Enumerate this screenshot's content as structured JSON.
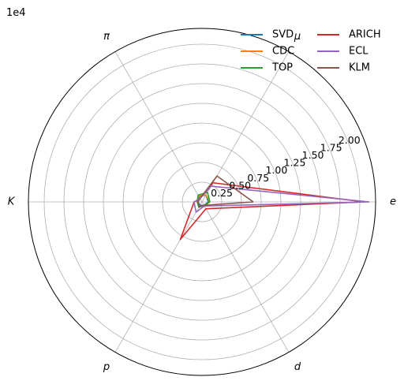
{
  "chart_data": {
    "type": "radar",
    "scale_note": "1e4",
    "categories": [
      "e",
      "μ",
      "π",
      "K",
      "p",
      "d"
    ],
    "radial_ticks": [
      0.25,
      0.5,
      0.75,
      1.0,
      1.25,
      1.5,
      1.75,
      2.0
    ],
    "radial_tick_labels": [
      "0.25",
      "0.50",
      "0.75",
      "1.00",
      "1.25",
      "1.50",
      "1.75",
      "2.00"
    ],
    "rlim": [
      0,
      2.2
    ],
    "grid": true,
    "legend_position": "top-right",
    "series": [
      {
        "name": "SVD",
        "color": "#1f77b4",
        "values": [
          0.08,
          0.1,
          0.08,
          0.05,
          0.05,
          0.05
        ]
      },
      {
        "name": "CDC",
        "color": "#ff7f0e",
        "values": [
          0.1,
          0.1,
          0.09,
          0.06,
          0.07,
          0.06
        ]
      },
      {
        "name": "TOP",
        "color": "#2ca02c",
        "values": [
          0.1,
          0.14,
          0.1,
          0.06,
          0.08,
          0.05
        ]
      },
      {
        "name": "ARICH",
        "color": "#d62728",
        "values": [
          2.05,
          0.28,
          0.05,
          0.1,
          0.55,
          0.1
        ]
      },
      {
        "name": "ECL",
        "color": "#9467bd",
        "values": [
          2.12,
          0.23,
          0.05,
          0.1,
          0.15,
          0.06
        ]
      },
      {
        "name": "KLM",
        "color": "#8c564b",
        "values": [
          0.65,
          0.38,
          0.05,
          0.05,
          0.07,
          0.05
        ]
      }
    ]
  }
}
